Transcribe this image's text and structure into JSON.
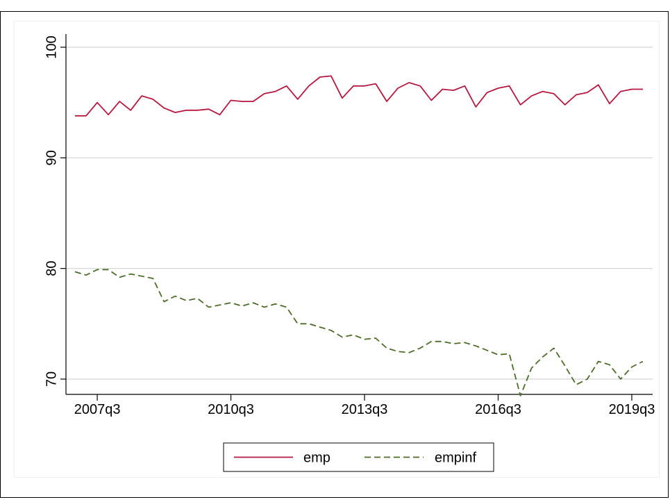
{
  "chart_data": {
    "type": "line",
    "title": "",
    "xlabel": "",
    "ylabel": "",
    "x_start": "2007q1",
    "x": [
      "2007q1",
      "2007q2",
      "2007q3",
      "2007q4",
      "2008q1",
      "2008q2",
      "2008q3",
      "2008q4",
      "2009q1",
      "2009q2",
      "2009q3",
      "2009q4",
      "2010q1",
      "2010q2",
      "2010q3",
      "2010q4",
      "2011q1",
      "2011q2",
      "2011q3",
      "2011q4",
      "2012q1",
      "2012q2",
      "2012q3",
      "2012q4",
      "2013q1",
      "2013q2",
      "2013q3",
      "2013q4",
      "2014q1",
      "2014q2",
      "2014q3",
      "2014q4",
      "2015q1",
      "2015q2",
      "2015q3",
      "2015q4",
      "2016q1",
      "2016q2",
      "2016q3",
      "2016q4",
      "2017q1",
      "2017q2",
      "2017q3",
      "2017q4",
      "2018q1",
      "2018q2",
      "2018q3",
      "2018q4",
      "2019q1",
      "2019q2",
      "2019q3",
      "2019q4"
    ],
    "xticks": [
      "2007q3",
      "2010q3",
      "2013q3",
      "2016q3",
      "2019q3"
    ],
    "yticks": [
      70,
      80,
      90,
      100
    ],
    "ylim": [
      68.5,
      100
    ],
    "grid": true,
    "legend_position": "bottom",
    "series": [
      {
        "name": "emp",
        "color": "#b5173f",
        "dash": "solid",
        "values": [
          93.8,
          93.8,
          95.0,
          93.9,
          95.1,
          94.3,
          95.6,
          95.3,
          94.5,
          94.1,
          94.3,
          94.3,
          94.4,
          93.9,
          95.2,
          95.1,
          95.1,
          95.8,
          96.0,
          96.5,
          95.3,
          96.5,
          97.3,
          97.4,
          95.4,
          96.5,
          96.5,
          96.7,
          95.1,
          96.3,
          96.8,
          96.5,
          95.2,
          96.2,
          96.1,
          96.5,
          94.6,
          95.9,
          96.3,
          96.5,
          94.8,
          95.6,
          96.0,
          95.8,
          94.8,
          95.7,
          95.9,
          96.6,
          94.9,
          96.0,
          96.2,
          96.2
        ]
      },
      {
        "name": "empinf",
        "color": "#4e6b2a",
        "dash": "dashed",
        "values": [
          79.7,
          79.4,
          79.9,
          79.9,
          79.2,
          79.5,
          79.3,
          79.1,
          77.0,
          77.5,
          77.1,
          77.3,
          76.5,
          76.7,
          76.9,
          76.6,
          76.9,
          76.5,
          76.8,
          76.5,
          75.0,
          75.0,
          74.7,
          74.4,
          73.8,
          74.0,
          73.6,
          73.7,
          72.8,
          72.5,
          72.4,
          72.8,
          73.4,
          73.4,
          73.2,
          73.3,
          73.0,
          72.6,
          72.2,
          72.3,
          68.5,
          71.0,
          72.0,
          72.8,
          71.2,
          69.5,
          70.0,
          71.6,
          71.3,
          70.0,
          71.1,
          71.6
        ]
      }
    ]
  }
}
